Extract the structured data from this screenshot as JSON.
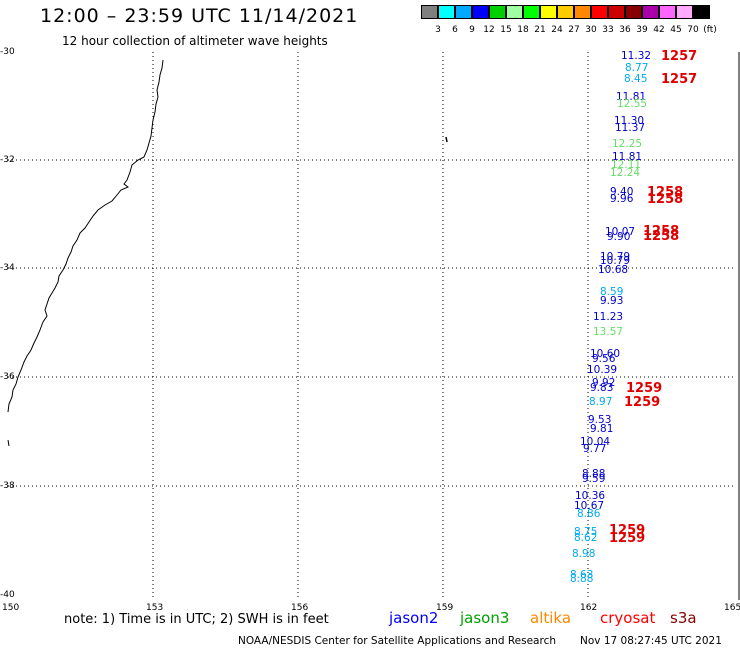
{
  "header": {
    "title": "12:00 – 23:59 UTC 11/14/2021",
    "subtitle": "12 hour collection of altimeter wave heights"
  },
  "legend": {
    "colors": [
      "#808080",
      "#00ffff",
      "#00aaff",
      "#0000ff",
      "#00d000",
      "#a0ffa0",
      "#00ff00",
      "#ffff00",
      "#ffcc00",
      "#ff8800",
      "#ff0000",
      "#cc0000",
      "#880000",
      "#aa00aa",
      "#ff66ff",
      "#ffaaff",
      "#000000"
    ],
    "labels": [
      "3",
      "6",
      "9",
      "12",
      "15",
      "18",
      "21",
      "24",
      "27",
      "30",
      "33",
      "36",
      "39",
      "42",
      "45",
      "70",
      "(ft)"
    ]
  },
  "axes": {
    "lat_labels": [
      "-30",
      "-32",
      "-34",
      "-36",
      "-38",
      "-40"
    ],
    "lon_labels": [
      "150",
      "153",
      "156",
      "159",
      "162",
      "165"
    ]
  },
  "observations": [
    {
      "text": "11.32",
      "color": "#0000cc"
    },
    {
      "text": "8.77",
      "color": "#00aaee"
    },
    {
      "text": "8.45",
      "color": "#00aaee"
    },
    {
      "text": "11.81",
      "color": "#0000cc"
    },
    {
      "text": "12.55",
      "color": "#66dd66"
    },
    {
      "text": "11.30",
      "color": "#0000cc"
    },
    {
      "text": "11.37",
      "color": "#0000cc"
    },
    {
      "text": "12.25",
      "color": "#66dd66"
    },
    {
      "text": "11.81",
      "color": "#0000cc"
    },
    {
      "text": "12.11",
      "color": "#66dd66"
    },
    {
      "text": "12.24",
      "color": "#66dd66"
    },
    {
      "text": "9.40",
      "color": "#0000cc"
    },
    {
      "text": "9.96",
      "color": "#0000cc"
    },
    {
      "text": "10.07",
      "color": "#0000cc"
    },
    {
      "text": "9.90",
      "color": "#0000cc"
    },
    {
      "text": "10.79",
      "color": "#0000cc"
    },
    {
      "text": "10.79",
      "color": "#0000cc"
    },
    {
      "text": "10.68",
      "color": "#0000cc"
    },
    {
      "text": "8.59",
      "color": "#00aaee"
    },
    {
      "text": "9.93",
      "color": "#0000cc"
    },
    {
      "text": "11.23",
      "color": "#0000cc"
    },
    {
      "text": "13.57",
      "color": "#66dd66"
    },
    {
      "text": "10.60",
      "color": "#0000cc"
    },
    {
      "text": "9.56",
      "color": "#0000cc"
    },
    {
      "text": "10.39",
      "color": "#0000cc"
    },
    {
      "text": "9.92",
      "color": "#0000cc"
    },
    {
      "text": "9.83",
      "color": "#0000cc"
    },
    {
      "text": "8.97",
      "color": "#00aaee"
    },
    {
      "text": "9.53",
      "color": "#0000cc"
    },
    {
      "text": "9.81",
      "color": "#0000cc"
    },
    {
      "text": "10.04",
      "color": "#0000cc"
    },
    {
      "text": "9.77",
      "color": "#0000cc"
    },
    {
      "text": "8.88",
      "color": "#0000cc"
    },
    {
      "text": "9.59",
      "color": "#0000cc"
    },
    {
      "text": "10.36",
      "color": "#0000cc"
    },
    {
      "text": "10.67",
      "color": "#0000cc"
    },
    {
      "text": "8.86",
      "color": "#00aaee"
    },
    {
      "text": "8.75",
      "color": "#00aaee"
    },
    {
      "text": "8.62",
      "color": "#00aaee"
    },
    {
      "text": "8.98",
      "color": "#00aaee"
    },
    {
      "text": "8.63",
      "color": "#00aaee"
    },
    {
      "text": "8.88",
      "color": "#00aaee"
    }
  ],
  "pass_times": [
    "1257",
    "1257",
    "1258",
    "1258",
    "1258",
    "1258",
    "1259",
    "1259",
    "1259",
    "1259"
  ],
  "note": "note: 1) Time is in UTC; 2) SWH is in feet",
  "satellites": [
    {
      "name": "jason2",
      "color": "#0000ff"
    },
    {
      "name": "jason3",
      "color": "#00a000"
    },
    {
      "name": "altika",
      "color": "#ff8800"
    },
    {
      "name": "cryosat",
      "color": "#ff0000"
    },
    {
      "name": "s3a",
      "color": "#880000"
    }
  ],
  "footer": "NOAA/NESDIS Center for Satellite Applications and Research",
  "timestamp": "Nov 17 08:27:45 UTC 2021"
}
